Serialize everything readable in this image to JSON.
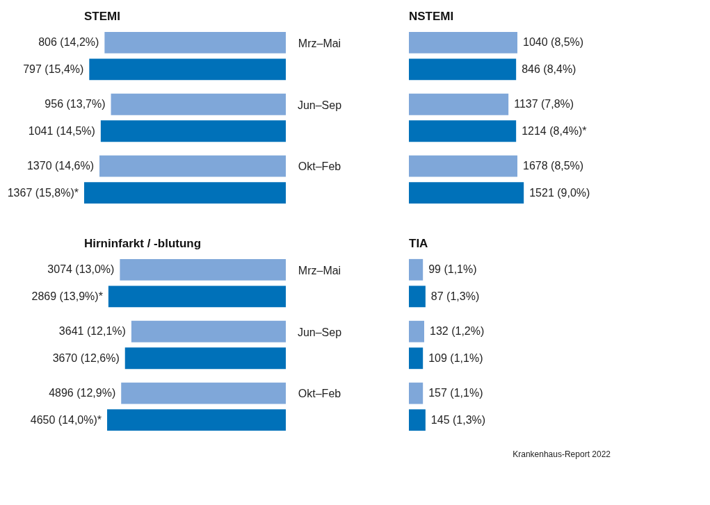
{
  "chart_data": [
    {
      "type": "bar",
      "orientation": "horizontal",
      "title": "STEMI",
      "categories": [
        "Mrz–Mai",
        "Jun–Sep",
        "Okt–Feb"
      ],
      "series": [
        {
          "color": "#7fa7d9",
          "values": [
            14.2,
            13.7,
            14.6
          ],
          "value_labels": [
            "806 (14,2%)",
            "956 (13,7%)",
            "1370 (14,6%)"
          ]
        },
        {
          "color": "#0071b9",
          "values": [
            15.4,
            14.5,
            15.8
          ],
          "value_labels": [
            "797 (15,4%)",
            "1041 (14,5%)",
            "1367 (15,8%)*"
          ]
        }
      ]
    },
    {
      "type": "bar",
      "orientation": "horizontal",
      "title": "NSTEMI",
      "categories": [
        null,
        null,
        null
      ],
      "series": [
        {
          "color": "#7fa7d9",
          "values": [
            8.5,
            7.8,
            8.5
          ],
          "value_labels": [
            "1040 (8,5%)",
            "1137 (7,8%)",
            "1678 (8,5%)"
          ]
        },
        {
          "color": "#0071b9",
          "values": [
            8.4,
            8.4,
            9.0
          ],
          "value_labels": [
            "846 (8,4%)",
            "1214 (8,4%)*",
            "1521 (9,0%)"
          ]
        }
      ]
    },
    {
      "type": "bar",
      "orientation": "horizontal",
      "title": "Hirninfarkt / -blutung",
      "categories": [
        "Mrz–Mai",
        "Jun–Sep",
        "Okt–Feb"
      ],
      "series": [
        {
          "color": "#7fa7d9",
          "values": [
            13.0,
            12.1,
            12.9
          ],
          "value_labels": [
            "3074 (13,0%)",
            "3641 (12,1%)",
            "4896 (12,9%)"
          ]
        },
        {
          "color": "#0071b9",
          "values": [
            13.9,
            12.6,
            14.0
          ],
          "value_labels": [
            "2869 (13,9%)*",
            "3670 (12,6%)",
            "4650 (14,0%)*"
          ]
        }
      ]
    },
    {
      "type": "bar",
      "orientation": "horizontal",
      "title": "TIA",
      "categories": [
        null,
        null,
        null
      ],
      "annotations": [
        "Krankenhaus-Report 2022"
      ],
      "series": [
        {
          "color": "#7fa7d9",
          "values": [
            1.1,
            1.2,
            1.1
          ],
          "value_labels": [
            "99 (1,1%)",
            "132 (1,2%)",
            "157 (1,1%)"
          ]
        },
        {
          "color": "#0071b9",
          "values": [
            1.3,
            1.1,
            1.3
          ],
          "value_labels": [
            "87 (1,3%)",
            "109 (1,1%)",
            "145 (1,3%)"
          ]
        }
      ]
    }
  ]
}
